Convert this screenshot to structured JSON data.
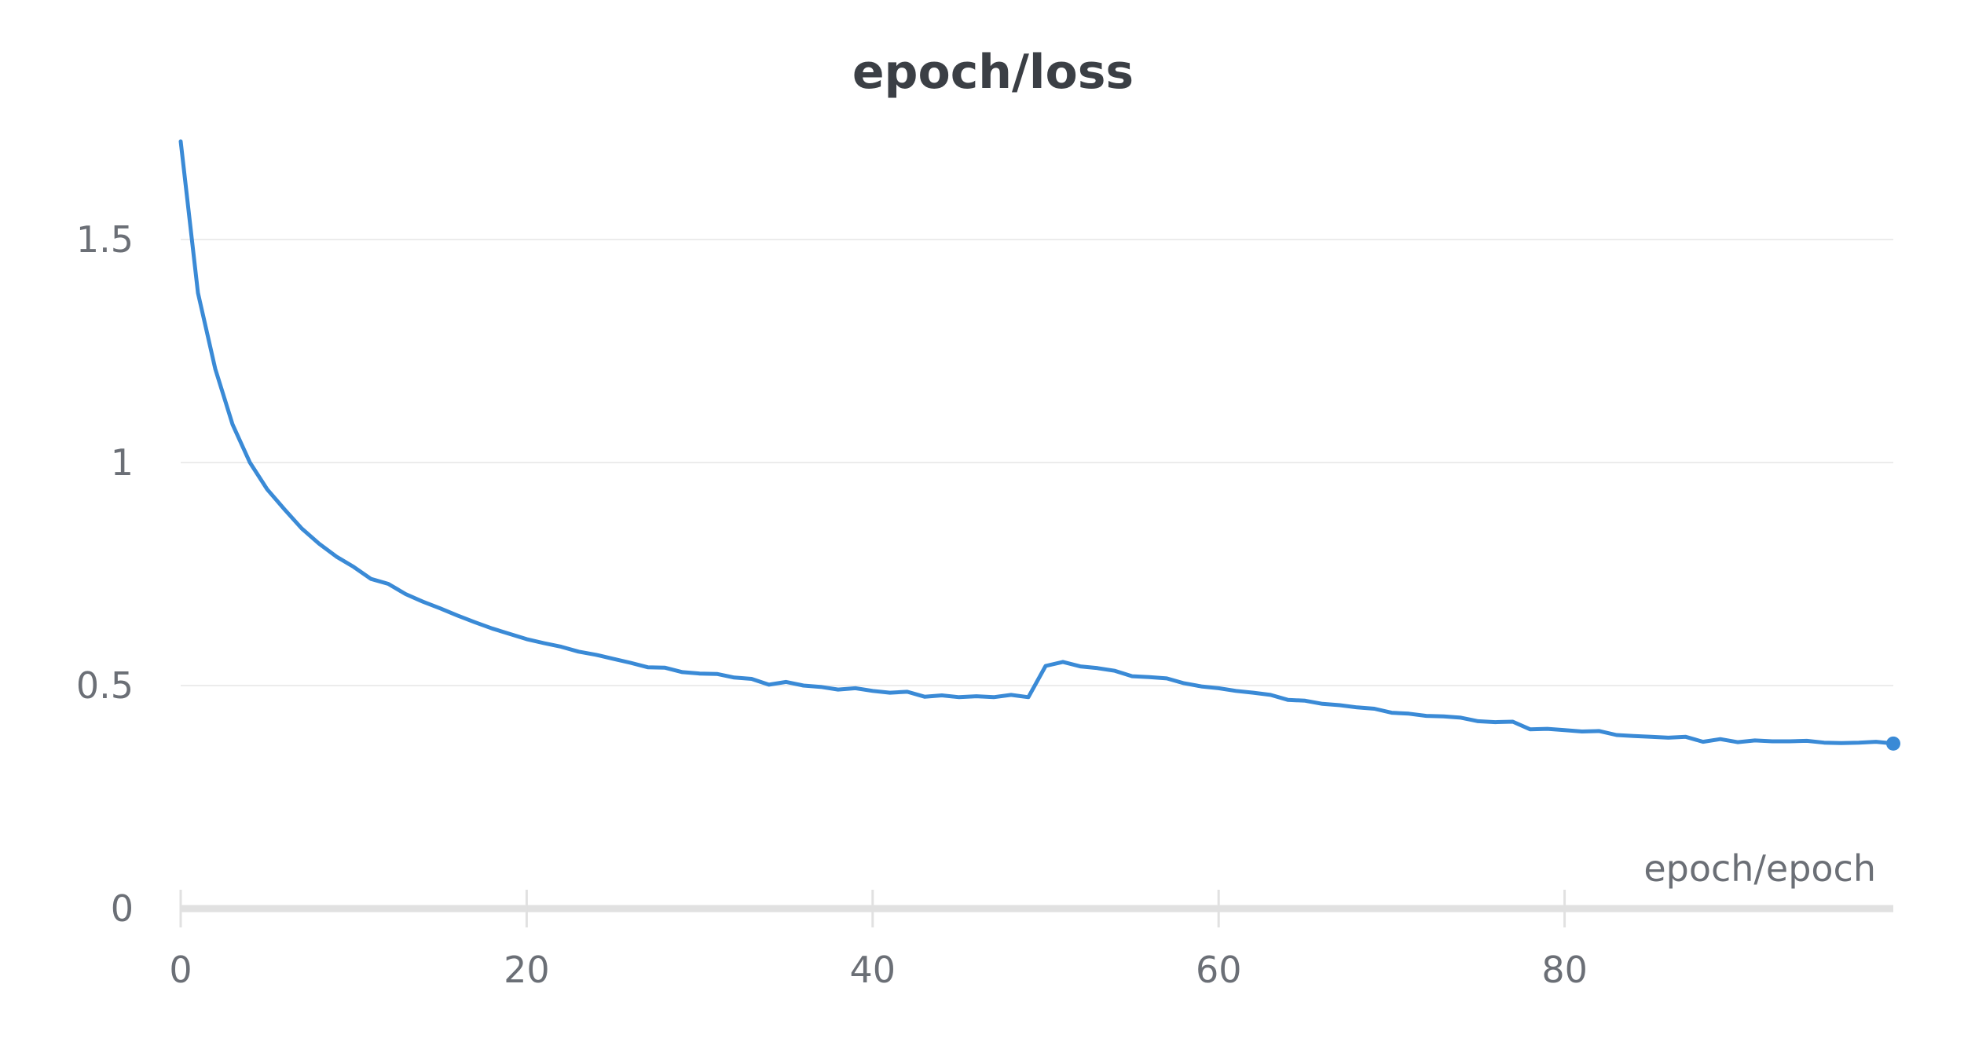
{
  "chart_data": {
    "type": "line",
    "title": "epoch/loss",
    "xlabel": "epoch/epoch",
    "ylabel": "",
    "xlim": [
      0,
      99
    ],
    "ylim": [
      0,
      1.72
    ],
    "x_ticks": [
      0,
      20,
      40,
      60,
      80
    ],
    "x_tick_labels": [
      "0",
      "20",
      "40",
      "60",
      "80"
    ],
    "y_ticks": [
      0,
      0.5,
      1,
      1.5
    ],
    "y_tick_labels": [
      "0",
      "0.5",
      "1",
      "1.5"
    ],
    "grid": true,
    "legend": "none",
    "colors": {
      "line": "#3a8ad6",
      "grid": "#ececec",
      "axis": "#e1e1e1",
      "tick_label": "#6b6f76",
      "title": "#3b3f45"
    },
    "series": [
      {
        "x": [
          0,
          1,
          2,
          3,
          4,
          5,
          6,
          7,
          8,
          9,
          10,
          11,
          12,
          13,
          14,
          15,
          16,
          17,
          18,
          19,
          20,
          21,
          22,
          23,
          24,
          25,
          26,
          27,
          28,
          29,
          30,
          31,
          32,
          33,
          34,
          35,
          36,
          37,
          38,
          39,
          40,
          41,
          42,
          43,
          44,
          45,
          46,
          47,
          48,
          49,
          50,
          51,
          52,
          53,
          54,
          55,
          56,
          57,
          58,
          59,
          60,
          61,
          62,
          63,
          64,
          65,
          66,
          67,
          68,
          69,
          70,
          71,
          72,
          73,
          74,
          75,
          76,
          77,
          78,
          79,
          80,
          81,
          82,
          83,
          84,
          85,
          86,
          87,
          88,
          89,
          90,
          91,
          92,
          93,
          94,
          95,
          96,
          97,
          98,
          99
        ],
        "values": [
          1.72,
          1.38,
          1.21,
          1.085,
          1.0,
          0.94,
          0.895,
          0.852,
          0.818,
          0.789,
          0.766,
          0.739,
          0.728,
          0.705,
          0.688,
          0.673,
          0.657,
          0.642,
          0.628,
          0.616,
          0.604,
          0.595,
          0.587,
          0.576,
          0.569,
          0.56,
          0.551,
          0.541,
          0.54,
          0.53,
          0.527,
          0.526,
          0.518,
          0.515,
          0.502,
          0.508,
          0.5,
          0.497,
          0.491,
          0.494,
          0.488,
          0.484,
          0.486,
          0.475,
          0.478,
          0.474,
          0.476,
          0.474,
          0.479,
          0.474,
          0.544,
          0.553,
          0.543,
          0.539,
          0.533,
          0.521,
          0.519,
          0.516,
          0.505,
          0.498,
          0.494,
          0.488,
          0.484,
          0.479,
          0.468,
          0.466,
          0.459,
          0.456,
          0.451,
          0.448,
          0.439,
          0.437,
          0.432,
          0.431,
          0.428,
          0.42,
          0.418,
          0.419,
          0.402,
          0.403,
          0.4,
          0.397,
          0.398,
          0.389,
          0.387,
          0.385,
          0.383,
          0.385,
          0.374,
          0.38,
          0.373,
          0.377,
          0.375,
          0.375,
          0.376,
          0.372,
          0.371,
          0.372,
          0.374,
          0.37
        ]
      }
    ]
  }
}
